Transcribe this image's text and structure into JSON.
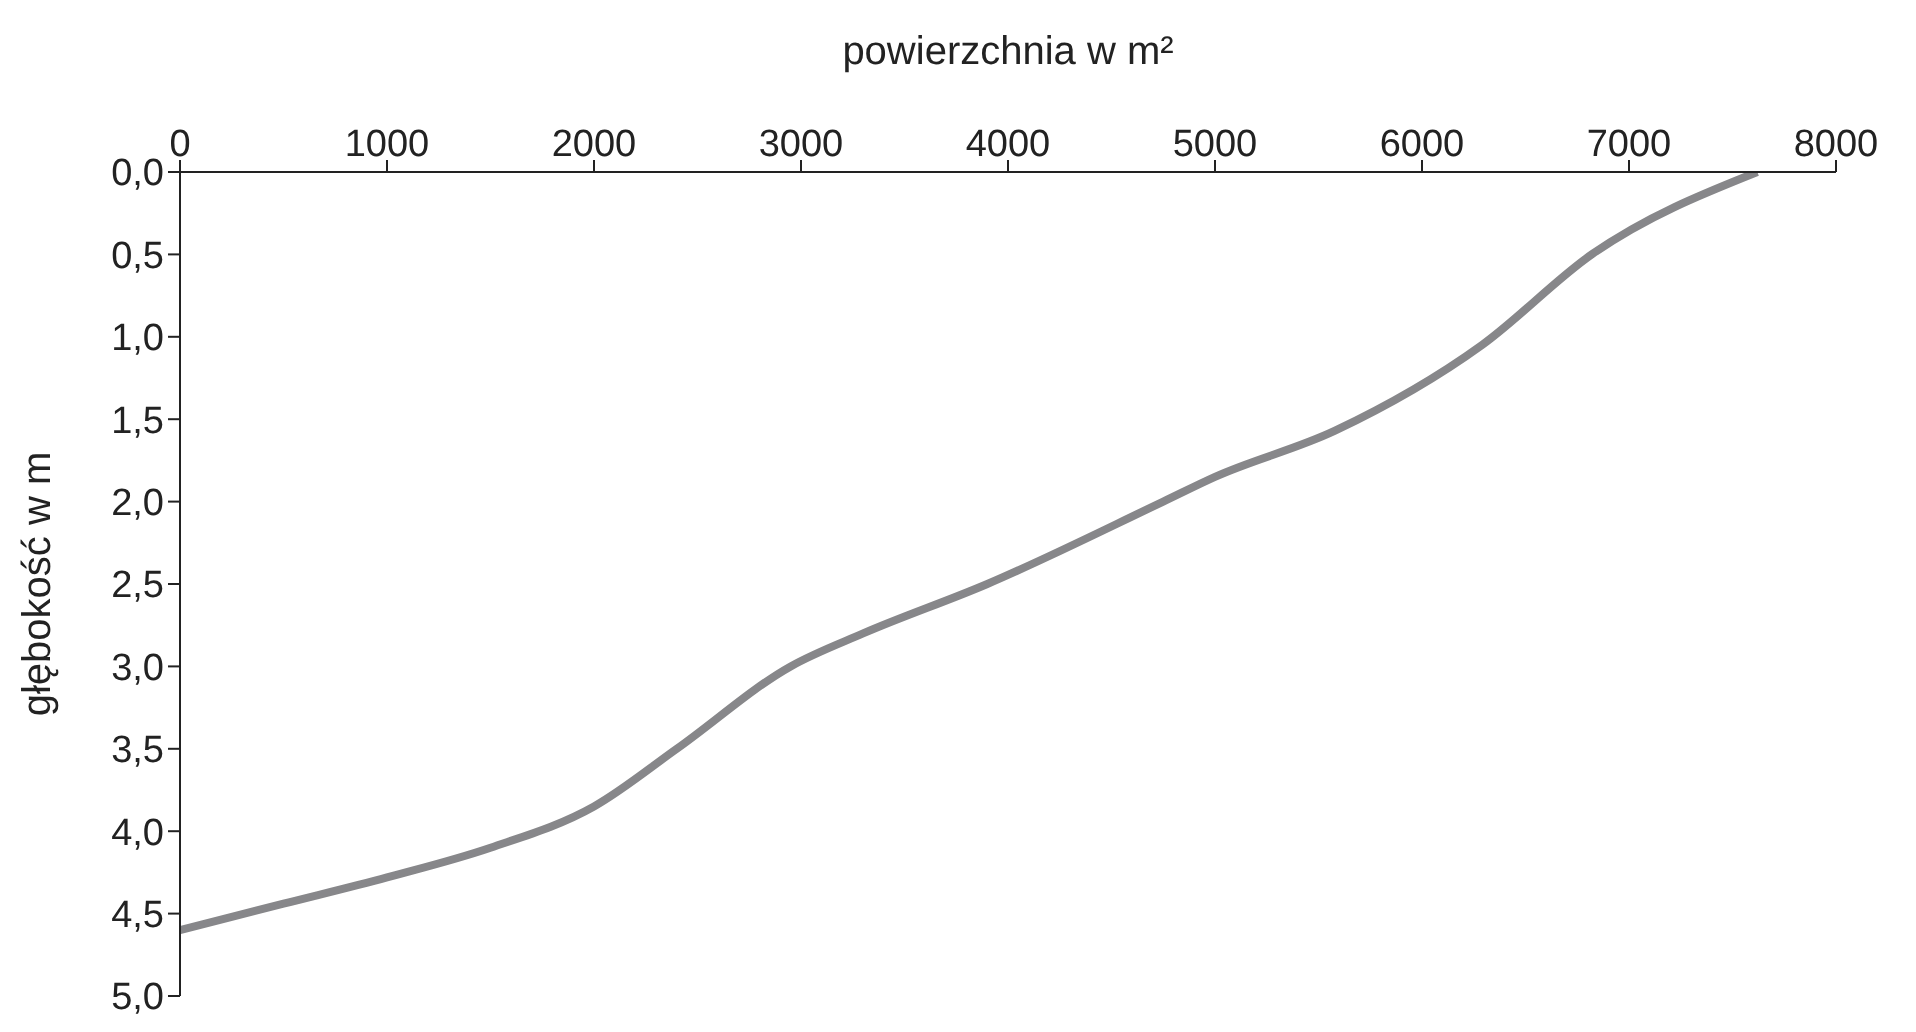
{
  "chart_data": {
    "type": "line",
    "xlabel": "powierzchnia w m²",
    "ylabel": "głębokość w m",
    "x": [
      7620,
      6820,
      6290,
      5580,
      5000,
      4750,
      3900,
      3300,
      2950,
      2400,
      2000,
      1500,
      1000,
      500,
      0
    ],
    "series": [
      {
        "color": "#87878a",
        "values": [
          0,
          0.5,
          1.05,
          1.57,
          1.85,
          2.0,
          2.5,
          2.8,
          3.0,
          3.5,
          3.85,
          4.1,
          4.28,
          4.44,
          4.6
        ]
      }
    ],
    "xlim": [
      0,
      8000
    ],
    "xticks": [
      0,
      1000,
      2000,
      3000,
      4000,
      5000,
      6000,
      7000,
      8000
    ],
    "ylim": [
      5,
      0
    ],
    "yticks": [
      {
        "value": 0,
        "label": "0,0"
      },
      {
        "value": 0.5,
        "label": "0,5"
      },
      {
        "value": 1,
        "label": "1,0"
      },
      {
        "value": 1.5,
        "label": "1,5"
      },
      {
        "value": 2,
        "label": "2,0"
      },
      {
        "value": 2.5,
        "label": "2,5"
      },
      {
        "value": 3,
        "label": "3,0"
      },
      {
        "value": 3.5,
        "label": "3,5"
      },
      {
        "value": 4,
        "label": "4,0"
      },
      {
        "value": 4.5,
        "label": "4,5"
      },
      {
        "value": 5,
        "label": "5,0"
      }
    ],
    "grid": false,
    "legend": false,
    "marker": "none",
    "line_style": "solid"
  }
}
